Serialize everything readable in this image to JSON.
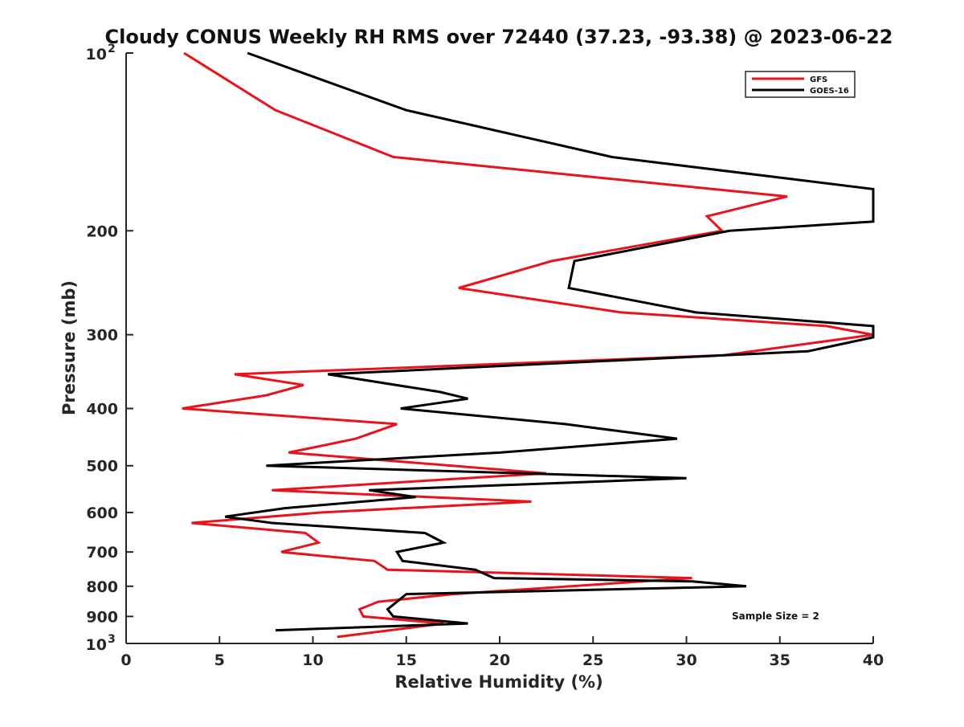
{
  "chart_data": {
    "type": "line",
    "title": "Cloudy CONUS Weekly RH RMS over 72440 (37.23, -93.38) @ 2023-06-22",
    "xlabel": "Relative Humidity (%)",
    "ylabel": "Pressure (mb)",
    "xlim": [
      0,
      40
    ],
    "ylim": [
      100,
      1000
    ],
    "y_scale": "log",
    "y_reversed": true,
    "grid": false,
    "legend_position": "top-right",
    "x_ticks": [
      {
        "value": 0,
        "label": "0"
      },
      {
        "value": 5,
        "label": "5"
      },
      {
        "value": 10,
        "label": "10"
      },
      {
        "value": 15,
        "label": "15"
      },
      {
        "value": 20,
        "label": "20"
      },
      {
        "value": 25,
        "label": "25"
      },
      {
        "value": 30,
        "label": "30"
      },
      {
        "value": 35,
        "label": "35"
      },
      {
        "value": 40,
        "label": "40"
      }
    ],
    "y_ticks": [
      {
        "value": 100,
        "label": "10",
        "sup": "2"
      },
      {
        "value": 200,
        "label": "200"
      },
      {
        "value": 300,
        "label": "300"
      },
      {
        "value": 400,
        "label": "400"
      },
      {
        "value": 500,
        "label": "500"
      },
      {
        "value": 600,
        "label": "600"
      },
      {
        "value": 700,
        "label": "700"
      },
      {
        "value": 800,
        "label": "800"
      },
      {
        "value": 900,
        "label": "900"
      },
      {
        "value": 1000,
        "label": "10",
        "sup": "3"
      }
    ],
    "annotation": "Sample Size = 2",
    "series": [
      {
        "name": "GFS",
        "color": "#e8141b",
        "points": [
          [
            3.1,
            100
          ],
          [
            8.0,
            125
          ],
          [
            14.3,
            150
          ],
          [
            35.4,
            175
          ],
          [
            31.1,
            189
          ],
          [
            31.9,
            200
          ],
          [
            22.8,
            225
          ],
          [
            17.8,
            250
          ],
          [
            26.5,
            275
          ],
          [
            37.5,
            290
          ],
          [
            40.0,
            300
          ],
          [
            32.0,
            325
          ],
          [
            5.8,
            350
          ],
          [
            9.5,
            365
          ],
          [
            7.5,
            380
          ],
          [
            3.0,
            400
          ],
          [
            14.5,
            425
          ],
          [
            12.3,
            450
          ],
          [
            8.7,
            475
          ],
          [
            22.5,
            515
          ],
          [
            7.8,
            550
          ],
          [
            21.7,
            575
          ],
          [
            10.5,
            600
          ],
          [
            3.5,
            625
          ],
          [
            9.6,
            650
          ],
          [
            10.3,
            675
          ],
          [
            8.3,
            700
          ],
          [
            13.3,
            725
          ],
          [
            14.0,
            750
          ],
          [
            30.3,
            775
          ],
          [
            17.5,
            825
          ],
          [
            13.5,
            850
          ],
          [
            12.5,
            875
          ],
          [
            12.7,
            900
          ],
          [
            17.0,
            925
          ],
          [
            11.3,
            975
          ]
        ]
      },
      {
        "name": "GOES-16",
        "color": "#000000",
        "points": [
          [
            6.5,
            100
          ],
          [
            15.0,
            125
          ],
          [
            26.0,
            150
          ],
          [
            40.0,
            170
          ],
          [
            40.0,
            193
          ],
          [
            32.3,
            200
          ],
          [
            24.0,
            225
          ],
          [
            23.7,
            250
          ],
          [
            30.5,
            275
          ],
          [
            40.0,
            290
          ],
          [
            40.0,
            303
          ],
          [
            36.5,
            320
          ],
          [
            10.8,
            350
          ],
          [
            16.8,
            375
          ],
          [
            18.3,
            385
          ],
          [
            14.7,
            400
          ],
          [
            23.5,
            425
          ],
          [
            29.5,
            450
          ],
          [
            20.0,
            475
          ],
          [
            7.5,
            500
          ],
          [
            30.0,
            525
          ],
          [
            13.0,
            550
          ],
          [
            15.5,
            565
          ],
          [
            8.5,
            590
          ],
          [
            5.3,
            610
          ],
          [
            7.8,
            625
          ],
          [
            16.0,
            650
          ],
          [
            17.0,
            675
          ],
          [
            14.5,
            700
          ],
          [
            14.8,
            725
          ],
          [
            18.7,
            750
          ],
          [
            19.7,
            775
          ],
          [
            30.3,
            785
          ],
          [
            33.2,
            800
          ],
          [
            15.0,
            825
          ],
          [
            14.5,
            850
          ],
          [
            14.0,
            875
          ],
          [
            14.3,
            900
          ],
          [
            18.3,
            925
          ],
          [
            8.0,
            950
          ]
        ]
      }
    ]
  }
}
